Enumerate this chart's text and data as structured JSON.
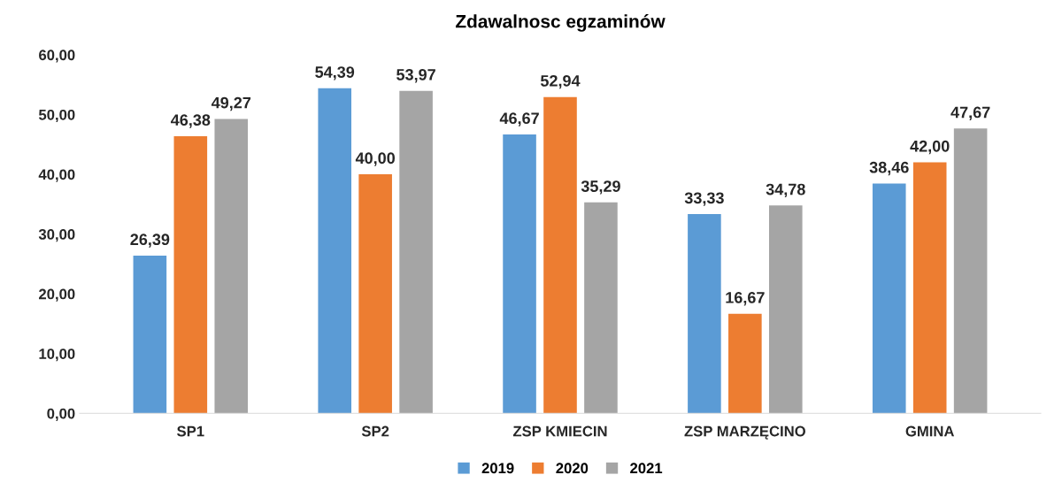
{
  "chart_data": {
    "type": "bar",
    "title": "Zdawalnosc egzaminów",
    "categories": [
      "SP1",
      "SP2",
      "ZSP KMIECIN",
      "ZSP MARZĘCINO",
      "GMINA"
    ],
    "series": [
      {
        "name": "2019",
        "color": "#5b9bd5",
        "values": [
          26.39,
          54.39,
          46.67,
          33.33,
          38.46
        ],
        "value_labels": [
          "26,39",
          "54,39",
          "46,67",
          "33,33",
          "38,46"
        ]
      },
      {
        "name": "2020",
        "color": "#ed7d31",
        "values": [
          46.38,
          40.0,
          52.94,
          16.67,
          42.0
        ],
        "value_labels": [
          "46,38",
          "40,00",
          "52,94",
          "16,67",
          "42,00"
        ]
      },
      {
        "name": "2021",
        "color": "#a5a5a5",
        "values": [
          49.27,
          53.97,
          35.29,
          34.78,
          47.67
        ],
        "value_labels": [
          "49,27",
          "53,97",
          "35,29",
          "34,78",
          "47,67"
        ]
      }
    ],
    "ylim": [
      0,
      60
    ],
    "yticks": [
      {
        "value": 0,
        "label": "0,00"
      },
      {
        "value": 10,
        "label": "10,00"
      },
      {
        "value": 20,
        "label": "20,00"
      },
      {
        "value": 30,
        "label": "30,00"
      },
      {
        "value": 40,
        "label": "40,00"
      },
      {
        "value": 50,
        "label": "50,00"
      },
      {
        "value": 60,
        "label": "60,00"
      }
    ],
    "grid": false,
    "legend": "bottom"
  }
}
